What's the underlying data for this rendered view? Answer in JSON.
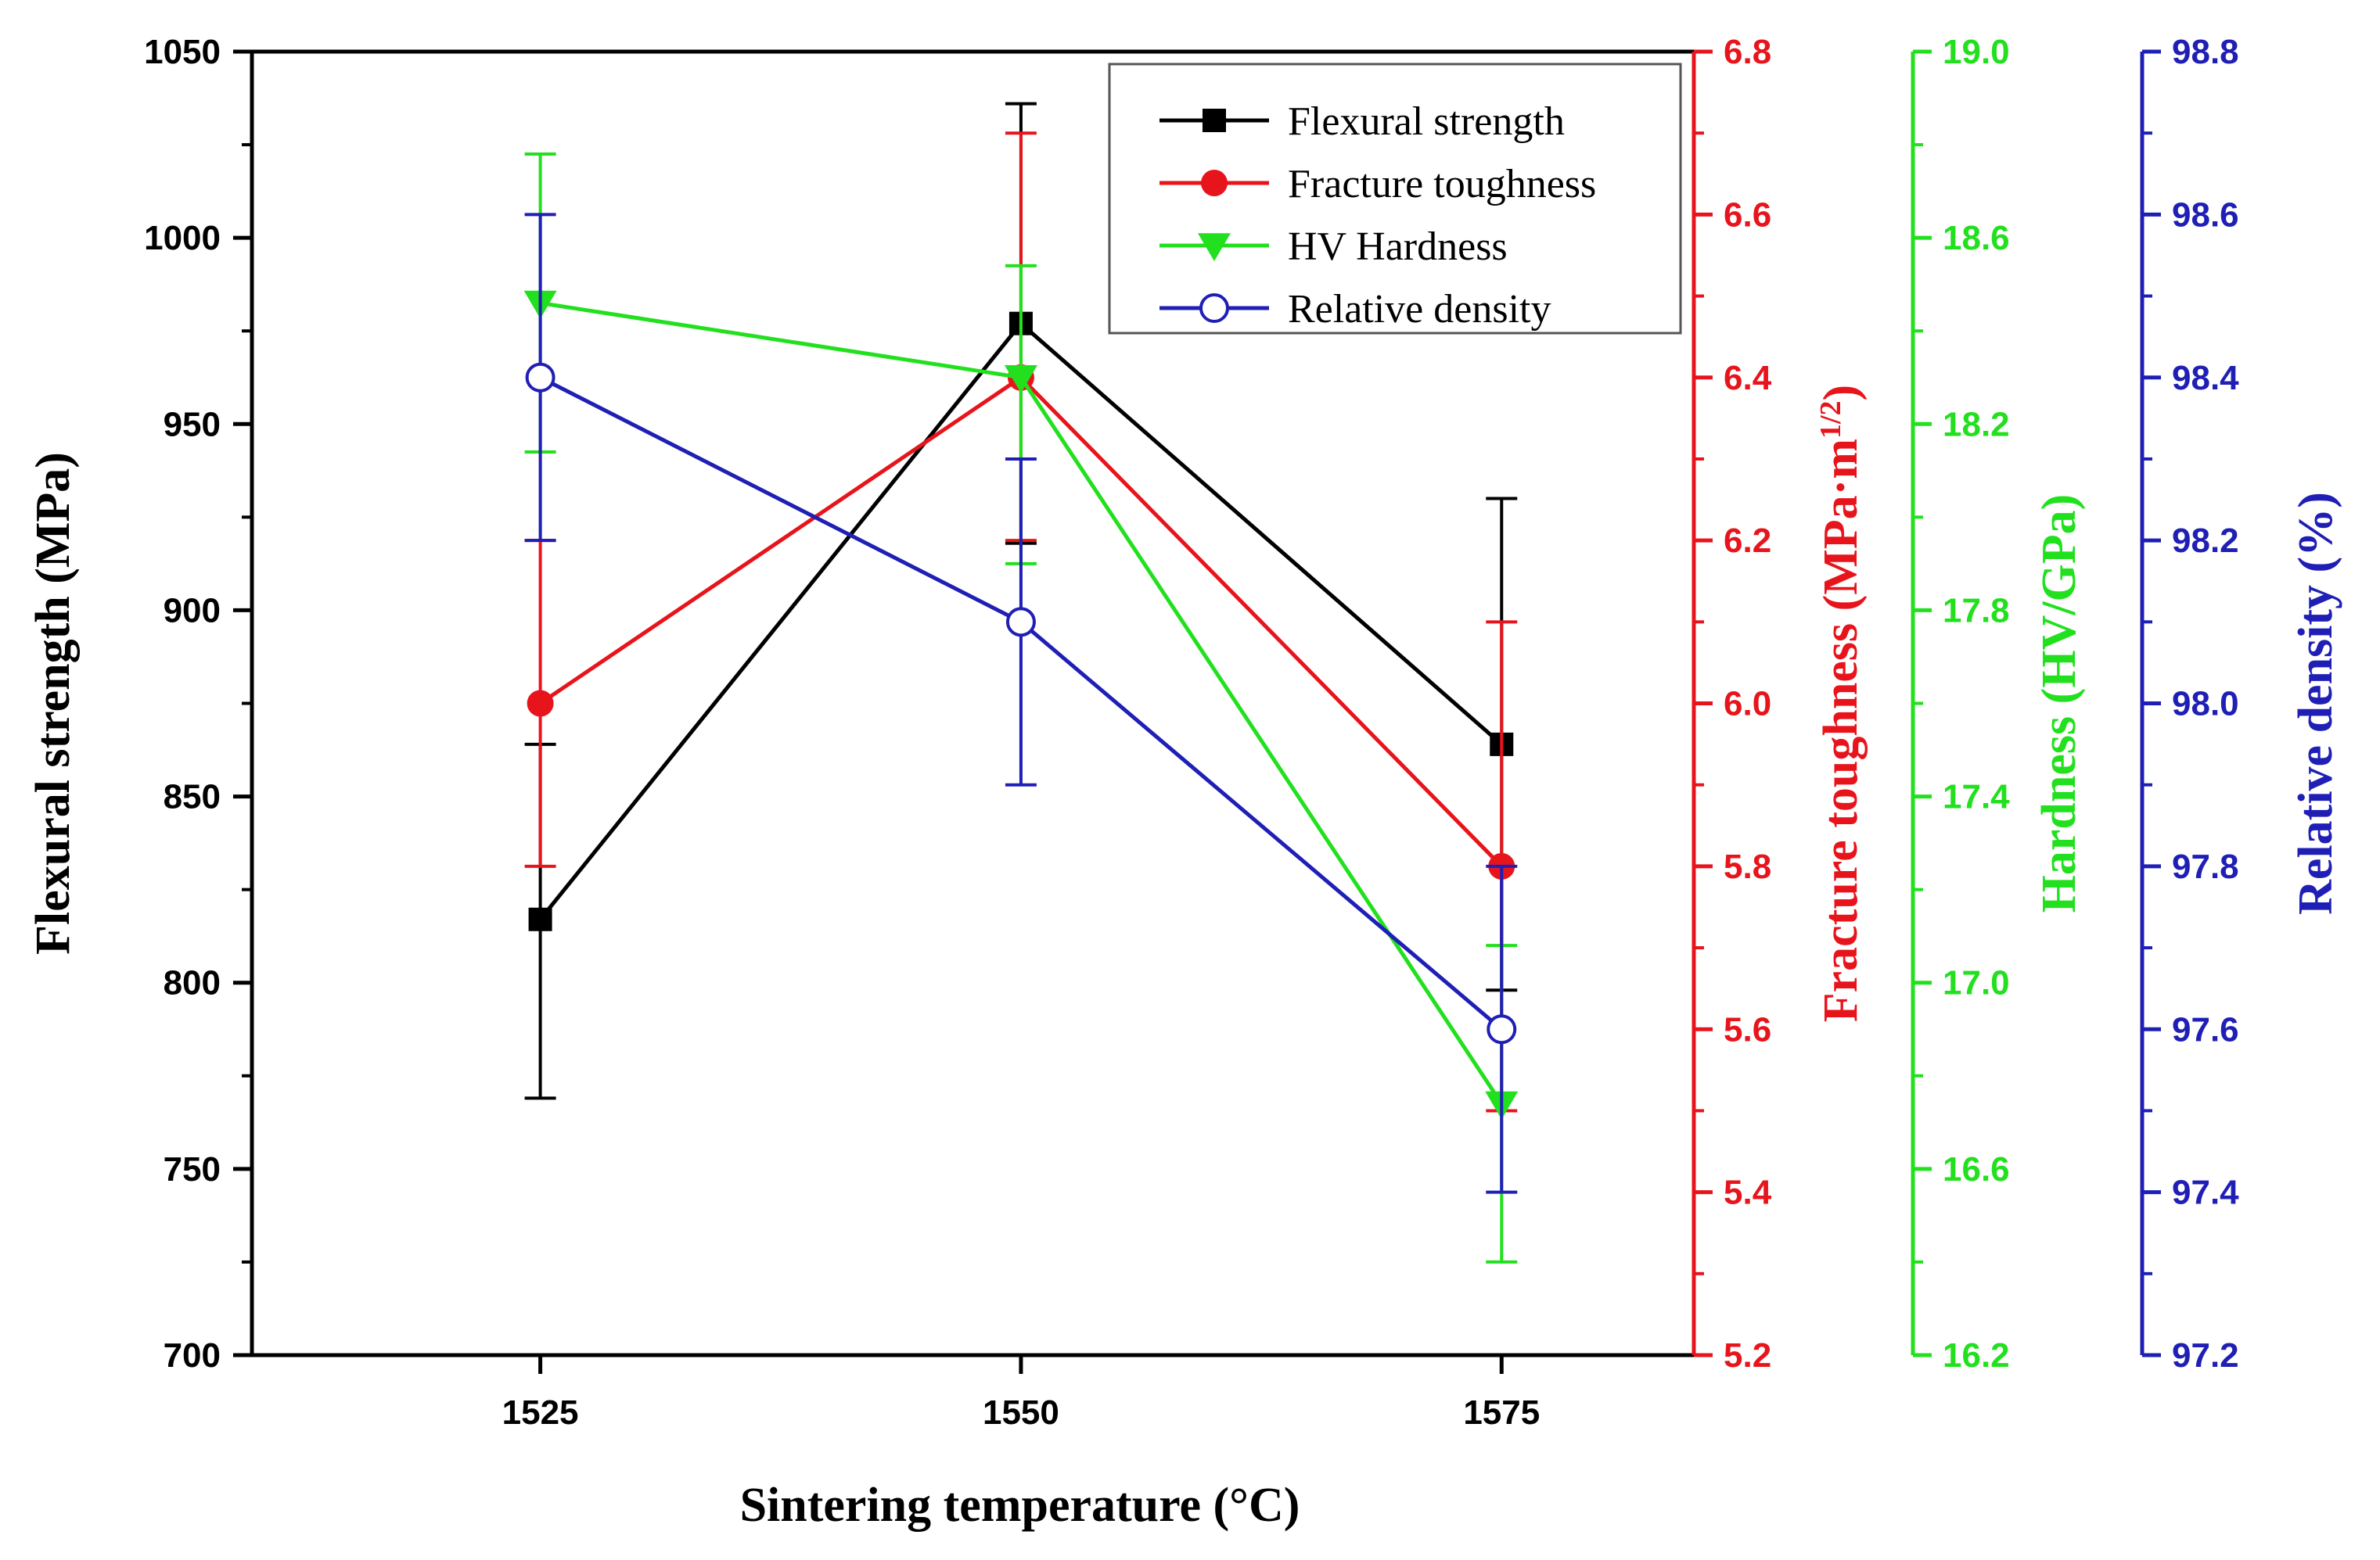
{
  "chart_data": {
    "type": "line",
    "title": "",
    "x": [
      1525,
      1550,
      1575
    ],
    "x_tick_labels": [
      "1525",
      "1550",
      "1575"
    ],
    "xlim": [
      1510,
      1585
    ],
    "xlabel": "Sintering temperature (°C)",
    "grid": false,
    "legend_position": "top-right",
    "axes": [
      {
        "id": "flexural",
        "label": "Flexural strength (MPa)",
        "side": "left",
        "range": [
          700,
          1050
        ],
        "ticks": [
          700,
          750,
          800,
          850,
          900,
          950,
          1000,
          1050
        ],
        "tick_labels": [
          "700",
          "750",
          "800",
          "850",
          "900",
          "950",
          "1000",
          "1050"
        ],
        "color": "#000000"
      },
      {
        "id": "toughness",
        "label": "Fracture toughness (MPa·m",
        "label_sup": "1/2",
        "label_close": ")",
        "side": "right",
        "range": [
          5.2,
          6.8
        ],
        "ticks": [
          5.2,
          5.4,
          5.6,
          5.8,
          6.0,
          6.2,
          6.4,
          6.6,
          6.8
        ],
        "tick_labels": [
          "5.2",
          "5.4",
          "5.6",
          "5.8",
          "6.0",
          "6.2",
          "6.4",
          "6.6",
          "6.8"
        ],
        "color": "#e8141c"
      },
      {
        "id": "hardness",
        "label": "Hardness (HV/GPa)",
        "side": "right",
        "range": [
          16.2,
          19.0
        ],
        "ticks": [
          16.2,
          16.6,
          17.0,
          17.4,
          17.8,
          18.2,
          18.6,
          19.0
        ],
        "tick_labels": [
          "16.2",
          "16.6",
          "17.0",
          "17.4",
          "17.8",
          "18.2",
          "18.6",
          "19.0"
        ],
        "color": "#22e01e"
      },
      {
        "id": "density",
        "label": "Relative density (%)",
        "side": "right",
        "range": [
          97.2,
          98.8
        ],
        "ticks": [
          97.2,
          97.4,
          97.6,
          97.8,
          98.0,
          98.2,
          98.4,
          98.6,
          98.8
        ],
        "tick_labels": [
          "97.2",
          "97.4",
          "97.6",
          "97.8",
          "98.0",
          "98.2",
          "98.4",
          "98.6",
          "98.8"
        ],
        "color": "#1f1fb5"
      }
    ],
    "series": [
      {
        "name": "Flexural strength",
        "axis": "flexural",
        "color": "#000000",
        "marker": "square",
        "values": [
          817,
          977,
          864
        ],
        "error_low": [
          769,
          918,
          798
        ],
        "error_high": [
          864,
          1036,
          930
        ]
      },
      {
        "name": "Fracture toughness",
        "axis": "toughness",
        "color": "#e8141c",
        "marker": "circle",
        "values": [
          6.0,
          6.4,
          5.8
        ],
        "error_low": [
          5.8,
          6.2,
          5.5
        ],
        "error_high": [
          6.2,
          6.7,
          6.1
        ]
      },
      {
        "name": "HV Hardness",
        "axis": "hardness",
        "color": "#22e01e",
        "marker": "triangle-down",
        "values": [
          18.46,
          18.3,
          16.74
        ],
        "error_low": [
          18.14,
          17.9,
          16.4
        ],
        "error_high": [
          18.78,
          18.54,
          17.08
        ]
      },
      {
        "name": "Relative density",
        "axis": "density",
        "color": "#1f1fb5",
        "marker": "open-circle",
        "values": [
          98.4,
          98.1,
          97.6
        ],
        "error_low": [
          98.2,
          97.9,
          97.4
        ],
        "error_high": [
          98.6,
          98.3,
          97.8
        ]
      }
    ]
  }
}
